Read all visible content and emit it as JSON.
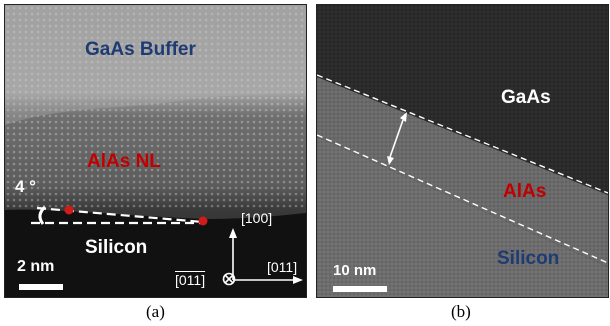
{
  "panel_a": {
    "labels": {
      "buffer": "GaAs Buffer",
      "nucleation": "AlAs NL",
      "substrate": "Silicon",
      "angle": "4 °"
    },
    "scale_bar": "2 nm",
    "directions": {
      "vertical": "[100]",
      "horizontal": "[011]",
      "into_page": "[011]"
    },
    "caption": "(a)"
  },
  "panel_b": {
    "labels": {
      "top": "GaAs",
      "middle": "AlAs",
      "bottom": "Silicon"
    },
    "scale_bar": "10 nm",
    "caption": "(b)"
  },
  "colors": {
    "blue_label": "#1f3b73",
    "red_label": "#c00000",
    "marker": "#d11b1b"
  }
}
